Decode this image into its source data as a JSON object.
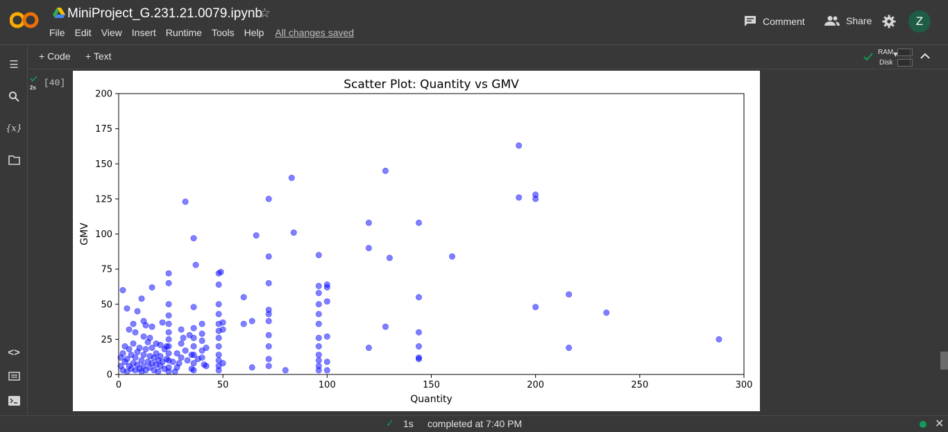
{
  "app": {
    "logo_text": "CO",
    "notebook_title": "MiniProject_G.231.21.0079.ipynb",
    "menu": [
      "File",
      "Edit",
      "View",
      "Insert",
      "Runtime",
      "Tools",
      "Help"
    ],
    "saved_status": "All changes saved",
    "comment_label": "Comment",
    "share_label": "Share",
    "avatar_initial": "Z",
    "colors": {
      "brand_orange": "#f9ab00",
      "status_green": "#0f9d58",
      "avatar_bg": "#1f5c45",
      "scatter_color": "#0000ff"
    }
  },
  "toolbar": {
    "code_label": "+ Code",
    "text_label": "+ Text",
    "ram_label": "RAM",
    "disk_label": "Disk"
  },
  "cell": {
    "exec_time": "2s",
    "exec_count": "[40]"
  },
  "status": {
    "duration": "1s",
    "message": "completed at 7:40 PM"
  },
  "chart_data": {
    "type": "scatter",
    "title": "Scatter Plot: Quantity vs GMV",
    "xlabel": "Quantity",
    "ylabel": "GMV",
    "xlim": [
      0,
      300
    ],
    "ylim": [
      0,
      200
    ],
    "xticks": [
      0,
      50,
      100,
      150,
      200,
      250,
      300
    ],
    "yticks": [
      0,
      25,
      50,
      75,
      100,
      125,
      150,
      175,
      200
    ],
    "grid": false,
    "marker_color": "#0000ff",
    "marker_alpha": 0.5,
    "points": [
      [
        2,
        60
      ],
      [
        4,
        47
      ],
      [
        5,
        32
      ],
      [
        7,
        36
      ],
      [
        8,
        30
      ],
      [
        9,
        45
      ],
      [
        11,
        54
      ],
      [
        12,
        38
      ],
      [
        13,
        35
      ],
      [
        15,
        26
      ],
      [
        16,
        62
      ],
      [
        16,
        34
      ],
      [
        18,
        22
      ],
      [
        20,
        21
      ],
      [
        21,
        37
      ],
      [
        24,
        72
      ],
      [
        24,
        65
      ],
      [
        24,
        50
      ],
      [
        24,
        42
      ],
      [
        24,
        36
      ],
      [
        24,
        30
      ],
      [
        24,
        25
      ],
      [
        24,
        20
      ],
      [
        24,
        15
      ],
      [
        24,
        10
      ],
      [
        24,
        5
      ],
      [
        24,
        2
      ],
      [
        1,
        12
      ],
      [
        1,
        6
      ],
      [
        2,
        3
      ],
      [
        2,
        15
      ],
      [
        3,
        9
      ],
      [
        3,
        20
      ],
      [
        4,
        2
      ],
      [
        4,
        11
      ],
      [
        5,
        6
      ],
      [
        5,
        18
      ],
      [
        6,
        14
      ],
      [
        6,
        4
      ],
      [
        7,
        8
      ],
      [
        7,
        22
      ],
      [
        8,
        12
      ],
      [
        8,
        3
      ],
      [
        9,
        16
      ],
      [
        9,
        7
      ],
      [
        10,
        4
      ],
      [
        10,
        19
      ],
      [
        11,
        10
      ],
      [
        11,
        2
      ],
      [
        12,
        14
      ],
      [
        12,
        6
      ],
      [
        12,
        27
      ],
      [
        13,
        3
      ],
      [
        13,
        18
      ],
      [
        14,
        9
      ],
      [
        14,
        23
      ],
      [
        15,
        5
      ],
      [
        15,
        13
      ],
      [
        16,
        8
      ],
      [
        16,
        19
      ],
      [
        17,
        12
      ],
      [
        17,
        3
      ],
      [
        18,
        15
      ],
      [
        18,
        7
      ],
      [
        19,
        10
      ],
      [
        19,
        2
      ],
      [
        20,
        13
      ],
      [
        20,
        6
      ],
      [
        21,
        9
      ],
      [
        22,
        18
      ],
      [
        22,
        4
      ],
      [
        23,
        11
      ],
      [
        23,
        20
      ],
      [
        26,
        9
      ],
      [
        27,
        2
      ],
      [
        28,
        15
      ],
      [
        28,
        5
      ],
      [
        29,
        8
      ],
      [
        30,
        32
      ],
      [
        30,
        22
      ],
      [
        30,
        12
      ],
      [
        31,
        26
      ],
      [
        32,
        123
      ],
      [
        32,
        17
      ],
      [
        33,
        10
      ],
      [
        34,
        28
      ],
      [
        35,
        14
      ],
      [
        35,
        4
      ],
      [
        36,
        97
      ],
      [
        36,
        48
      ],
      [
        36,
        33
      ],
      [
        36,
        26
      ],
      [
        36,
        20
      ],
      [
        36,
        14
      ],
      [
        36,
        8
      ],
      [
        36,
        3
      ],
      [
        37,
        78
      ],
      [
        38,
        11
      ],
      [
        40,
        36
      ],
      [
        40,
        29
      ],
      [
        40,
        24
      ],
      [
        40,
        17
      ],
      [
        40,
        12
      ],
      [
        41,
        7
      ],
      [
        42,
        19
      ],
      [
        42,
        6
      ],
      [
        48,
        72
      ],
      [
        48,
        64
      ],
      [
        48,
        50
      ],
      [
        48,
        43
      ],
      [
        48,
        36
      ],
      [
        48,
        31
      ],
      [
        48,
        26
      ],
      [
        48,
        20
      ],
      [
        48,
        14
      ],
      [
        48,
        10
      ],
      [
        48,
        6
      ],
      [
        48,
        3
      ],
      [
        49,
        73
      ],
      [
        50,
        37
      ],
      [
        50,
        32
      ],
      [
        50,
        8
      ],
      [
        60,
        55
      ],
      [
        60,
        36
      ],
      [
        64,
        38
      ],
      [
        64,
        5
      ],
      [
        66,
        99
      ],
      [
        72,
        125
      ],
      [
        72,
        84
      ],
      [
        72,
        65
      ],
      [
        72,
        46
      ],
      [
        72,
        43
      ],
      [
        72,
        38
      ],
      [
        72,
        28
      ],
      [
        72,
        20
      ],
      [
        72,
        11
      ],
      [
        72,
        6
      ],
      [
        80,
        3
      ],
      [
        83,
        140
      ],
      [
        84,
        101
      ],
      [
        96,
        85
      ],
      [
        96,
        63
      ],
      [
        96,
        58
      ],
      [
        96,
        50
      ],
      [
        96,
        43
      ],
      [
        96,
        36
      ],
      [
        96,
        26
      ],
      [
        96,
        20
      ],
      [
        96,
        14
      ],
      [
        96,
        10
      ],
      [
        96,
        6
      ],
      [
        96,
        3
      ],
      [
        100,
        64
      ],
      [
        100,
        62
      ],
      [
        100,
        52
      ],
      [
        100,
        27
      ],
      [
        100,
        9
      ],
      [
        100,
        3
      ],
      [
        120,
        108
      ],
      [
        120,
        90
      ],
      [
        120,
        19
      ],
      [
        128,
        145
      ],
      [
        128,
        34
      ],
      [
        130,
        83
      ],
      [
        144,
        108
      ],
      [
        144,
        55
      ],
      [
        144,
        30
      ],
      [
        144,
        20
      ],
      [
        144,
        12
      ],
      [
        144,
        11
      ],
      [
        160,
        84
      ],
      [
        192,
        163
      ],
      [
        192,
        126
      ],
      [
        200,
        128
      ],
      [
        200,
        125
      ],
      [
        200,
        48
      ],
      [
        216,
        57
      ],
      [
        216,
        19
      ],
      [
        234,
        44
      ],
      [
        288,
        25
      ]
    ]
  }
}
